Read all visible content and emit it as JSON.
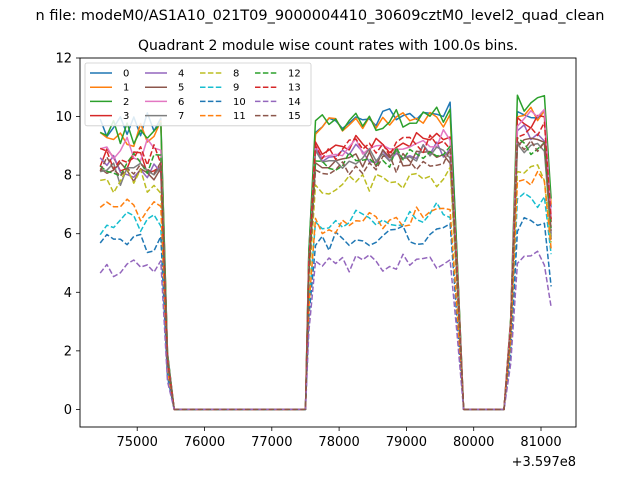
{
  "figure": {
    "suptitle": "n file: modeM0/AS1A10_021T09_9000004410_30609cztM0_level2_quad_clean",
    "offset_label": "+3.597e8"
  },
  "chart_data": {
    "type": "line",
    "title": "Quadrant 2 module wise count rates with 100.0s bins.",
    "xlabel": "",
    "ylabel": "",
    "x_offset": 359700000,
    "xlim": [
      74150,
      81520
    ],
    "ylim": [
      -0.6,
      12.0
    ],
    "xticks": [
      75000,
      76000,
      77000,
      78000,
      79000,
      80000,
      81000
    ],
    "xtick_labels": [
      "75000",
      "76000",
      "77000",
      "78000",
      "79000",
      "80000",
      "81000"
    ],
    "yticks": [
      0,
      2,
      4,
      6,
      8,
      10,
      12
    ],
    "ytick_labels": [
      "0",
      "2",
      "4",
      "6",
      "8",
      "10",
      "12"
    ],
    "grid": false,
    "legend": {
      "placement": "top-left",
      "columns": 4
    },
    "segments": [
      {
        "start": 74450,
        "end": 75350,
        "edge": 75450,
        "zero_from": 75550
      },
      {
        "zero_to": 77500,
        "edge": 77550,
        "start": 77650,
        "end": 79650,
        "edge2": 79750,
        "zero_from": 79850
      },
      {
        "zero_to": 80450,
        "edge": 80550,
        "start": 80650,
        "end": 81050,
        "last": 81150
      }
    ],
    "series": [
      {
        "name": "0",
        "color": "#1f77b4",
        "dashed": false,
        "level": [
          9.7,
          9.8,
          10.0
        ],
        "last": 6.9
      },
      {
        "name": "1",
        "color": "#ff7f0e",
        "dashed": false,
        "level": [
          9.4,
          9.6,
          10.2
        ],
        "last": 7.0
      },
      {
        "name": "2",
        "color": "#2ca02c",
        "dashed": false,
        "level": [
          9.5,
          9.7,
          10.4
        ],
        "last": 7.2
      },
      {
        "name": "3",
        "color": "#d62728",
        "dashed": false,
        "level": [
          8.5,
          8.9,
          9.8
        ],
        "last": 6.4
      },
      {
        "name": "4",
        "color": "#9467bd",
        "dashed": false,
        "level": [
          8.3,
          8.6,
          9.4
        ],
        "last": 6.0
      },
      {
        "name": "5",
        "color": "#8c564b",
        "dashed": false,
        "level": [
          8.0,
          8.4,
          9.1
        ],
        "last": 5.8
      },
      {
        "name": "6",
        "color": "#e377c2",
        "dashed": false,
        "level": [
          8.9,
          8.9,
          9.9
        ],
        "last": 6.6
      },
      {
        "name": "7",
        "color": "#7f7f7f",
        "dashed": false,
        "level": [
          8.1,
          8.5,
          8.8
        ],
        "last": 5.9
      },
      {
        "name": "8",
        "color": "#bcbd22",
        "dashed": true,
        "level": [
          7.8,
          7.6,
          8.1
        ],
        "last": 5.7
      },
      {
        "name": "9",
        "color": "#17becf",
        "dashed": true,
        "level": [
          6.4,
          6.4,
          7.2
        ],
        "last": 5.3
      },
      {
        "name": "10",
        "color": "#1f77b4",
        "dashed": true,
        "level": [
          5.6,
          5.7,
          6.4
        ],
        "last": 4.2
      },
      {
        "name": "11",
        "color": "#ff7f0e",
        "dashed": true,
        "level": [
          6.8,
          6.3,
          7.9
        ],
        "last": 5.5
      },
      {
        "name": "12",
        "color": "#2ca02c",
        "dashed": true,
        "level": [
          8.4,
          8.4,
          9.0
        ],
        "last": 6.2
      },
      {
        "name": "13",
        "color": "#d62728",
        "dashed": true,
        "level": [
          8.6,
          8.8,
          9.6
        ],
        "last": 6.5
      },
      {
        "name": "14",
        "color": "#9467bd",
        "dashed": true,
        "level": [
          4.8,
          4.8,
          5.2
        ],
        "last": 3.5
      },
      {
        "name": "15",
        "color": "#8c564b",
        "dashed": true,
        "level": [
          8.2,
          8.2,
          9.0
        ],
        "last": 6.1
      }
    ]
  }
}
